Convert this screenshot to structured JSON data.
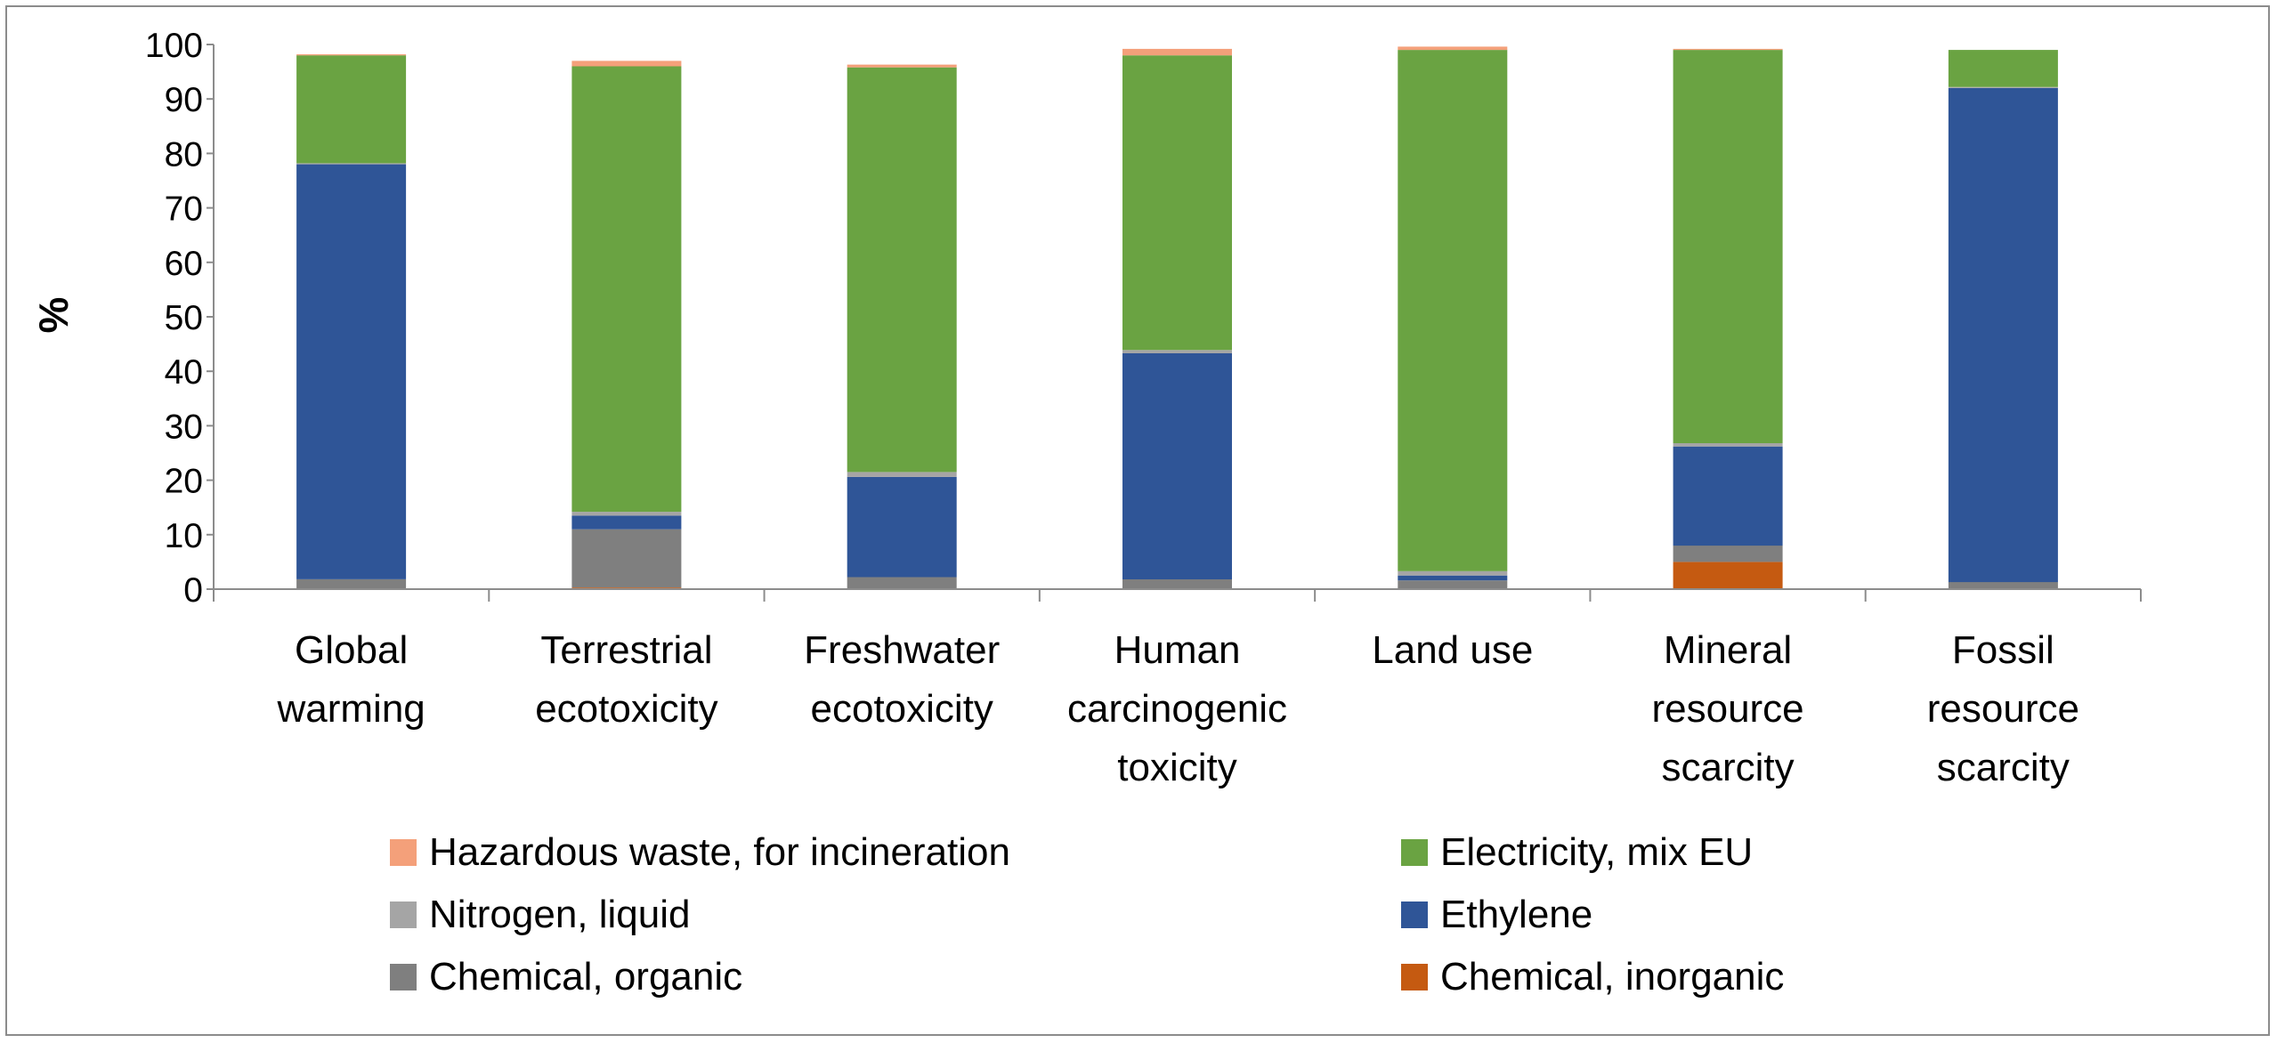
{
  "chart_data": {
    "type": "bar",
    "stacked": true,
    "categories": [
      [
        "Global",
        "warming"
      ],
      [
        "Terrestrial",
        "ecotoxicity"
      ],
      [
        "Freshwater",
        "ecotoxicity"
      ],
      [
        "Human",
        "carcinogenic",
        "toxicity"
      ],
      [
        "Land use"
      ],
      [
        "Mineral",
        "resource",
        "scarcity"
      ],
      [
        "Fossil",
        "resource",
        "scarcity"
      ]
    ],
    "ylabel": "%",
    "ylim": [
      0,
      100
    ],
    "yticks": [
      0,
      10,
      20,
      30,
      40,
      50,
      60,
      70,
      80,
      90,
      100
    ],
    "grid": false,
    "legend_position": "bottom",
    "series": [
      {
        "name": "Chemical, inorganic",
        "color": "#C55A11",
        "values": [
          0,
          0.3,
          0,
          0,
          0,
          5,
          0
        ]
      },
      {
        "name": "Chemical, organic",
        "color": "#7F7F7F",
        "values": [
          1.8,
          10.7,
          2.2,
          1.8,
          1.6,
          3,
          1.3
        ]
      },
      {
        "name": "Ethylene",
        "color": "#2F5597",
        "values": [
          76.2,
          2.5,
          18.4,
          41.5,
          0.9,
          18.2,
          90.7
        ]
      },
      {
        "name": "Nitrogen, liquid",
        "color": "#A5A5A5",
        "values": [
          0.2,
          0.7,
          0.9,
          0.6,
          0.8,
          0.6,
          0.2
        ]
      },
      {
        "name": "Electricity, mix EU",
        "color": "#6AA342",
        "values": [
          19.8,
          81.8,
          74.3,
          54.1,
          95.7,
          72.2,
          6.8
        ]
      },
      {
        "name": "Hazardous waste, for incineration",
        "color": "#F4A07A",
        "values": [
          0.2,
          1,
          0.5,
          1.2,
          0.6,
          0.2,
          0
        ]
      }
    ],
    "legend_order": [
      "Hazardous waste, for incineration",
      "Electricity, mix EU",
      "Nitrogen, liquid",
      "Ethylene",
      "Chemical, organic",
      "Chemical, inorganic"
    ]
  }
}
